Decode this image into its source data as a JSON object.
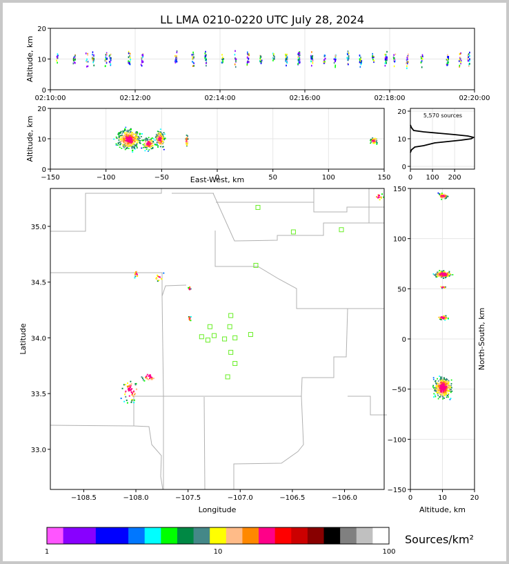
{
  "title": "LL LMA 0210-0220 UTC July 28, 2024",
  "source_count_label": "5,570 sources",
  "colorbar_label": "Sources/km²",
  "chart_data": [
    {
      "type": "scatter",
      "name": "altitude-time",
      "xlabel": "",
      "ylabel": "Altitude, km",
      "x_ticks": [
        "02:10:00",
        "02:12:00",
        "02:14:00",
        "02:16:00",
        "02:18:00",
        "02:20:00"
      ],
      "ylim": [
        0,
        20
      ],
      "y_ticks": [
        0,
        10,
        20
      ],
      "grid": true,
      "column_times_min": [
        0.15,
        0.55,
        0.85,
        1.0,
        1.3,
        1.4,
        1.85,
        2.15,
        2.95,
        3.35,
        3.65,
        4.05,
        4.35,
        4.65,
        4.95,
        5.25,
        5.55,
        5.85,
        6.15,
        6.45,
        6.7,
        7.0,
        7.3,
        7.6,
        7.9,
        8.1,
        8.4,
        8.75,
        9.35,
        9.65,
        9.85
      ]
    },
    {
      "type": "heatmap",
      "name": "east-west-altitude",
      "xlabel": "East-West, km",
      "ylabel": "Altitude, km",
      "xlim": [
        -150,
        150
      ],
      "x_ticks": [
        -150,
        -100,
        -50,
        0,
        50,
        100,
        150
      ],
      "ylim": [
        0,
        20
      ],
      "y_ticks": [
        0,
        10,
        20
      ],
      "grid": true,
      "clusters": [
        {
          "x_km": -80,
          "alt_km": 10,
          "spread_x": 10,
          "spread_alt": 3
        },
        {
          "x_km": -62,
          "alt_km": 8.5,
          "spread_x": 5,
          "spread_alt": 1.8
        },
        {
          "x_km": -52,
          "alt_km": 10,
          "spread_x": 4,
          "spread_alt": 2.5
        },
        {
          "x_km": -28,
          "alt_km": 9.5,
          "spread_x": 1.2,
          "spread_alt": 2
        },
        {
          "x_km": 140,
          "alt_km": 9.5,
          "spread_x": 3,
          "spread_alt": 1.2
        }
      ]
    },
    {
      "type": "line",
      "name": "altitude-histogram",
      "xlim": [
        0,
        290
      ],
      "x_ticks": [
        0,
        100,
        200
      ],
      "ylim": [
        -1,
        21
      ],
      "y_ticks": [
        0,
        10,
        20
      ],
      "grid": true,
      "points": [
        [
          0,
          5
        ],
        [
          5,
          6
        ],
        [
          20,
          7
        ],
        [
          60,
          7.5
        ],
        [
          110,
          8.5
        ],
        [
          170,
          9
        ],
        [
          230,
          9.5
        ],
        [
          275,
          10
        ],
        [
          285,
          10.5
        ],
        [
          260,
          11
        ],
        [
          200,
          11.5
        ],
        [
          130,
          12
        ],
        [
          60,
          12.5
        ],
        [
          15,
          13
        ],
        [
          5,
          14
        ],
        [
          0,
          15
        ]
      ]
    },
    {
      "type": "heatmap",
      "name": "plan-view",
      "xlabel": "Longitude",
      "ylabel": "Latitude",
      "xlim": [
        -108.82,
        -105.62
      ],
      "x_ticks": [
        -108.5,
        -108.0,
        -107.5,
        -107.0,
        -106.5,
        -106.0
      ],
      "ylim": [
        32.64,
        35.34
      ],
      "y_ticks": [
        33.0,
        33.5,
        34.0,
        34.5,
        35.0
      ],
      "stations": [
        [
          -106.83,
          35.17
        ],
        [
          -106.49,
          34.95
        ],
        [
          -106.03,
          34.97
        ],
        [
          -106.85,
          34.65
        ],
        [
          -107.09,
          34.2
        ],
        [
          -107.1,
          34.1
        ],
        [
          -107.29,
          34.1
        ],
        [
          -107.37,
          34.01
        ],
        [
          -107.31,
          33.98
        ],
        [
          -107.25,
          34.02
        ],
        [
          -107.15,
          33.99
        ],
        [
          -107.05,
          34.0
        ],
        [
          -106.9,
          34.03
        ],
        [
          -107.09,
          33.87
        ],
        [
          -107.05,
          33.77
        ],
        [
          -107.12,
          33.65
        ]
      ],
      "clusters": [
        {
          "lon": -108.06,
          "lat": 33.53,
          "spread_lon": 0.07,
          "spread_lat": 0.09
        },
        {
          "lon": -107.88,
          "lat": 33.66,
          "spread_lon": 0.07,
          "spread_lat": 0.04
        },
        {
          "lon": -108.0,
          "lat": 34.58,
          "spread_lon": 0.02,
          "spread_lat": 0.03
        },
        {
          "lon": -107.78,
          "lat": 34.55,
          "spread_lon": 0.04,
          "spread_lat": 0.03
        },
        {
          "lon": -107.49,
          "lat": 34.45,
          "spread_lon": 0.01,
          "spread_lat": 0.02
        },
        {
          "lon": -107.49,
          "lat": 34.18,
          "spread_lon": 0.01,
          "spread_lat": 0.02
        },
        {
          "lon": -105.68,
          "lat": 35.27,
          "spread_lon": 0.04,
          "spread_lat": 0.03
        }
      ]
    },
    {
      "type": "heatmap",
      "name": "altitude-north-south",
      "xlabel": "Altitude, km",
      "ylabel": "North-South, km",
      "xlim": [
        0,
        20
      ],
      "x_ticks": [
        0,
        10,
        20
      ],
      "ylim": [
        -150,
        150
      ],
      "y_ticks": [
        -150,
        -100,
        -50,
        0,
        50,
        100,
        150
      ],
      "grid": true,
      "clusters": [
        {
          "alt_km": 10,
          "y_km": 143,
          "spread_alt": 1.3,
          "spread_y": 2.5
        },
        {
          "alt_km": 10,
          "y_km": 65,
          "spread_alt": 2.5,
          "spread_y": 3
        },
        {
          "alt_km": 10,
          "y_km": 52,
          "spread_alt": 1,
          "spread_y": 1
        },
        {
          "alt_km": 10,
          "y_km": 22,
          "spread_alt": 1.5,
          "spread_y": 2
        },
        {
          "alt_km": 10,
          "y_km": -48,
          "spread_alt": 2.5,
          "spread_y": 9
        }
      ]
    },
    {
      "type": "bar",
      "name": "colorbar",
      "scale": "log",
      "x_ticks": [
        1,
        10,
        100
      ],
      "colors": [
        "#ff55ff",
        "#8800ff",
        "#8800ff",
        "#0000ff",
        "#0000ff",
        "#0077ff",
        "#00ffff",
        "#00ff00",
        "#008844",
        "#448888",
        "#ffff00",
        "#ffbb88",
        "#ff8800",
        "#ff0088",
        "#ff0000",
        "#cc0000",
        "#880000",
        "#000000",
        "#808080",
        "#c0c0c0",
        "#ffffff"
      ]
    }
  ]
}
